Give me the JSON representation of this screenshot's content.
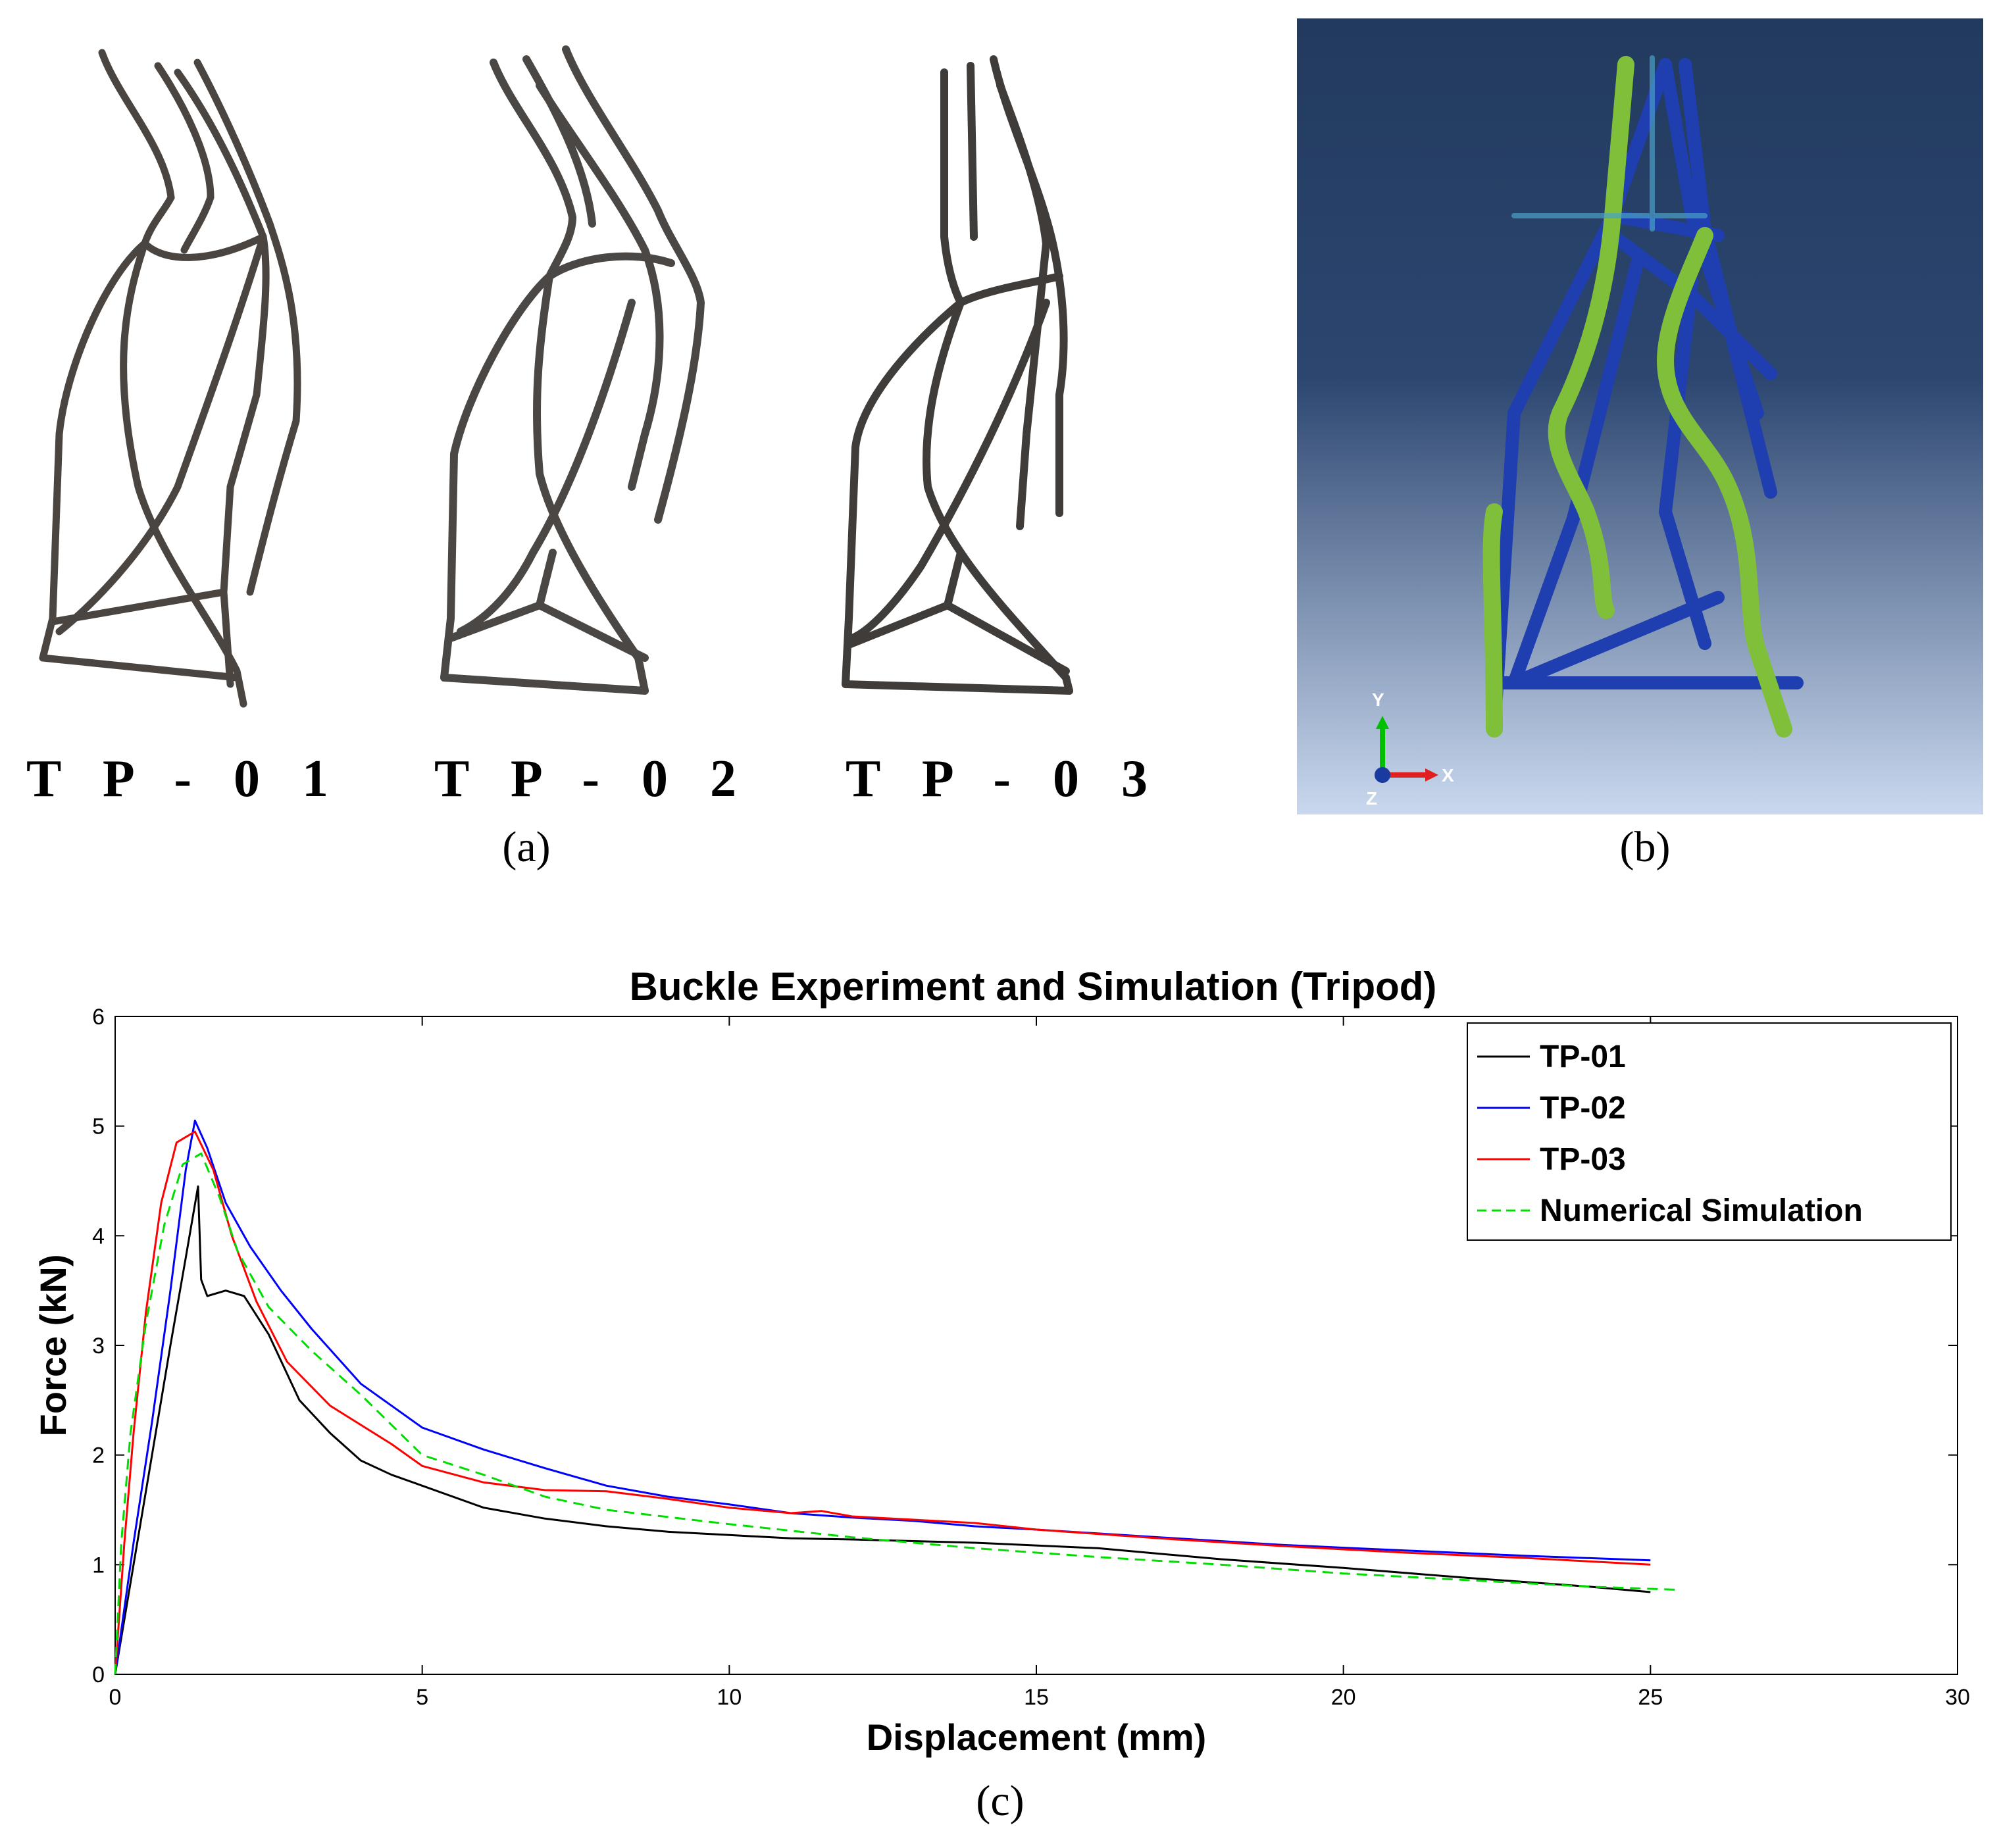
{
  "panels": {
    "a": {
      "label": "(a)",
      "specimens": [
        "T P - 0 1",
        "T P - 0 2",
        "T P - 0 3"
      ]
    },
    "b": {
      "label": "(b)",
      "axes": {
        "y": "Y",
        "x": "X",
        "z": "Z"
      }
    },
    "c": {
      "label": "(c)"
    }
  },
  "colors": {
    "TP-01": "#000000",
    "TP-02": "#0000ff",
    "TP-03": "#ff0000",
    "Numerical Simulation": "#00dd00",
    "sim_background_top": "#223a5e",
    "sim_background_bottom": "#c9d8ee"
  },
  "chart_data": {
    "type": "line",
    "title": "Buckle Experiment and Simulation (Tripod)",
    "xlabel": "Displacement (mm)",
    "ylabel": "Force (kN)",
    "xlim": [
      0,
      30
    ],
    "ylim": [
      0,
      6
    ],
    "xticks": [
      0,
      5,
      10,
      15,
      20,
      25,
      30
    ],
    "yticks": [
      0,
      1,
      2,
      3,
      4,
      5,
      6
    ],
    "grid": false,
    "legend_position": "top-right",
    "series": [
      {
        "name": "TP-01",
        "style": "solid",
        "color": "#000000",
        "points": [
          [
            0,
            0
          ],
          [
            0.3,
            1.0
          ],
          [
            0.6,
            2.0
          ],
          [
            0.9,
            3.0
          ],
          [
            1.15,
            3.8
          ],
          [
            1.35,
            4.45
          ],
          [
            1.4,
            3.6
          ],
          [
            1.5,
            3.45
          ],
          [
            1.8,
            3.5
          ],
          [
            2.1,
            3.45
          ],
          [
            2.5,
            3.1
          ],
          [
            3,
            2.5
          ],
          [
            3.5,
            2.2
          ],
          [
            4,
            1.95
          ],
          [
            4.5,
            1.82
          ],
          [
            5,
            1.72
          ],
          [
            6,
            1.52
          ],
          [
            7,
            1.42
          ],
          [
            8,
            1.35
          ],
          [
            9,
            1.3
          ],
          [
            10,
            1.27
          ],
          [
            11,
            1.24
          ],
          [
            12,
            1.23
          ],
          [
            14,
            1.2
          ],
          [
            16,
            1.15
          ],
          [
            18,
            1.05
          ],
          [
            20,
            0.97
          ],
          [
            22,
            0.88
          ],
          [
            24,
            0.8
          ],
          [
            25,
            0.75
          ]
        ]
      },
      {
        "name": "TP-02",
        "style": "solid",
        "color": "#0000ff",
        "points": [
          [
            0,
            0
          ],
          [
            0.3,
            1.2
          ],
          [
            0.6,
            2.3
          ],
          [
            0.9,
            3.5
          ],
          [
            1.15,
            4.6
          ],
          [
            1.3,
            5.05
          ],
          [
            1.5,
            4.8
          ],
          [
            1.8,
            4.3
          ],
          [
            2.2,
            3.9
          ],
          [
            2.7,
            3.5
          ],
          [
            3.2,
            3.15
          ],
          [
            4,
            2.65
          ],
          [
            5,
            2.25
          ],
          [
            6,
            2.05
          ],
          [
            7,
            1.88
          ],
          [
            8,
            1.72
          ],
          [
            9,
            1.62
          ],
          [
            10,
            1.55
          ],
          [
            11,
            1.47
          ],
          [
            12,
            1.43
          ],
          [
            13,
            1.4
          ],
          [
            14,
            1.35
          ],
          [
            15,
            1.32
          ],
          [
            17,
            1.25
          ],
          [
            19,
            1.18
          ],
          [
            21,
            1.13
          ],
          [
            23,
            1.08
          ],
          [
            25,
            1.04
          ]
        ]
      },
      {
        "name": "TP-03",
        "style": "solid",
        "color": "#ff0000",
        "points": [
          [
            0,
            0
          ],
          [
            0.15,
            1.2
          ],
          [
            0.3,
            2.2
          ],
          [
            0.5,
            3.3
          ],
          [
            0.75,
            4.3
          ],
          [
            1.0,
            4.85
          ],
          [
            1.3,
            4.95
          ],
          [
            1.6,
            4.6
          ],
          [
            1.9,
            4.0
          ],
          [
            2.3,
            3.4
          ],
          [
            2.8,
            2.85
          ],
          [
            3.5,
            2.45
          ],
          [
            4.5,
            2.1
          ],
          [
            5,
            1.9
          ],
          [
            6,
            1.75
          ],
          [
            7,
            1.68
          ],
          [
            8,
            1.67
          ],
          [
            9,
            1.6
          ],
          [
            10,
            1.52
          ],
          [
            11,
            1.47
          ],
          [
            11.5,
            1.49
          ],
          [
            12,
            1.44
          ],
          [
            14,
            1.38
          ],
          [
            15,
            1.32
          ],
          [
            17,
            1.24
          ],
          [
            19,
            1.17
          ],
          [
            21,
            1.11
          ],
          [
            23,
            1.06
          ],
          [
            25,
            1.0
          ]
        ]
      },
      {
        "name": "Numerical Simulation",
        "style": "dashed",
        "color": "#00dd00",
        "points": [
          [
            0,
            0
          ],
          [
            0.1,
            1.2
          ],
          [
            0.25,
            2.2
          ],
          [
            0.5,
            3.2
          ],
          [
            0.8,
            4.1
          ],
          [
            1.1,
            4.65
          ],
          [
            1.4,
            4.75
          ],
          [
            1.7,
            4.35
          ],
          [
            2.0,
            3.85
          ],
          [
            2.5,
            3.35
          ],
          [
            3.2,
            2.95
          ],
          [
            4,
            2.55
          ],
          [
            5,
            2.0
          ],
          [
            6,
            1.82
          ],
          [
            7,
            1.62
          ],
          [
            8,
            1.5
          ],
          [
            10,
            1.37
          ],
          [
            12,
            1.25
          ],
          [
            14,
            1.15
          ],
          [
            16,
            1.07
          ],
          [
            18,
            1.0
          ],
          [
            20,
            0.92
          ],
          [
            22,
            0.86
          ],
          [
            24,
            0.8
          ],
          [
            25.5,
            0.77
          ]
        ]
      }
    ]
  }
}
